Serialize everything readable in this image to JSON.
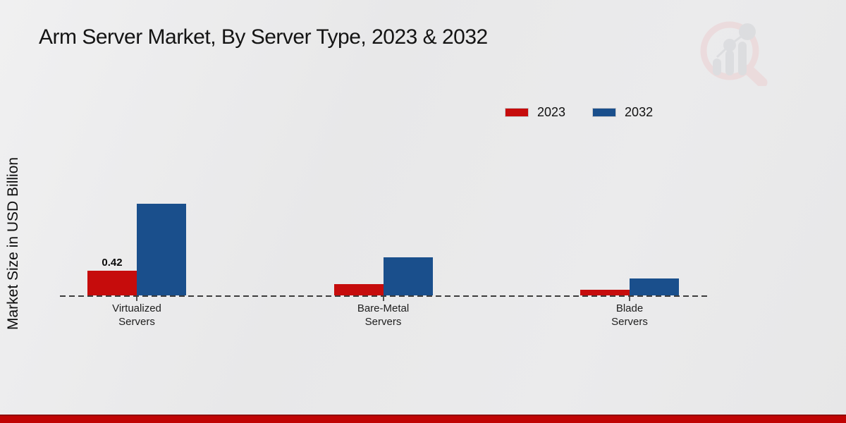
{
  "page": {
    "title": "Arm Server Market, By Server Type, 2023 & 2032",
    "y_axis_label": "Market Size in USD Billion"
  },
  "legend": {
    "items": [
      {
        "label": "2023",
        "color": "#c60c0c"
      },
      {
        "label": "2032",
        "color": "#1a4f8c"
      }
    ]
  },
  "watermark": {
    "icon": "magnifier-bar-chart-logo-icon",
    "ring_color": "#eccfd1",
    "bars_color": "#d2d3d7"
  },
  "footer": {
    "band_color": "#c00404",
    "line_color": "#8f0a0a"
  },
  "chart_data": {
    "type": "bar",
    "title": "Arm Server Market, By Server Type, 2023 & 2032",
    "xlabel": "",
    "ylabel": "Market Size in USD Billion",
    "categories": [
      "Virtualized\nServers",
      "Bare-Metal\nServers",
      "Blade\nServers"
    ],
    "series": [
      {
        "name": "2023",
        "color": "#c60c0c",
        "values": [
          0.42,
          0.19,
          0.1
        ]
      },
      {
        "name": "2032",
        "color": "#1a4f8c",
        "values": [
          1.56,
          0.65,
          0.29
        ]
      }
    ],
    "annotations": [
      {
        "series": "2023",
        "category_index": 0,
        "text": "0.42"
      }
    ],
    "ylim": [
      0,
      1.65
    ],
    "grid": false,
    "axis_line_style": "dashed",
    "legend_position": "top-right"
  }
}
